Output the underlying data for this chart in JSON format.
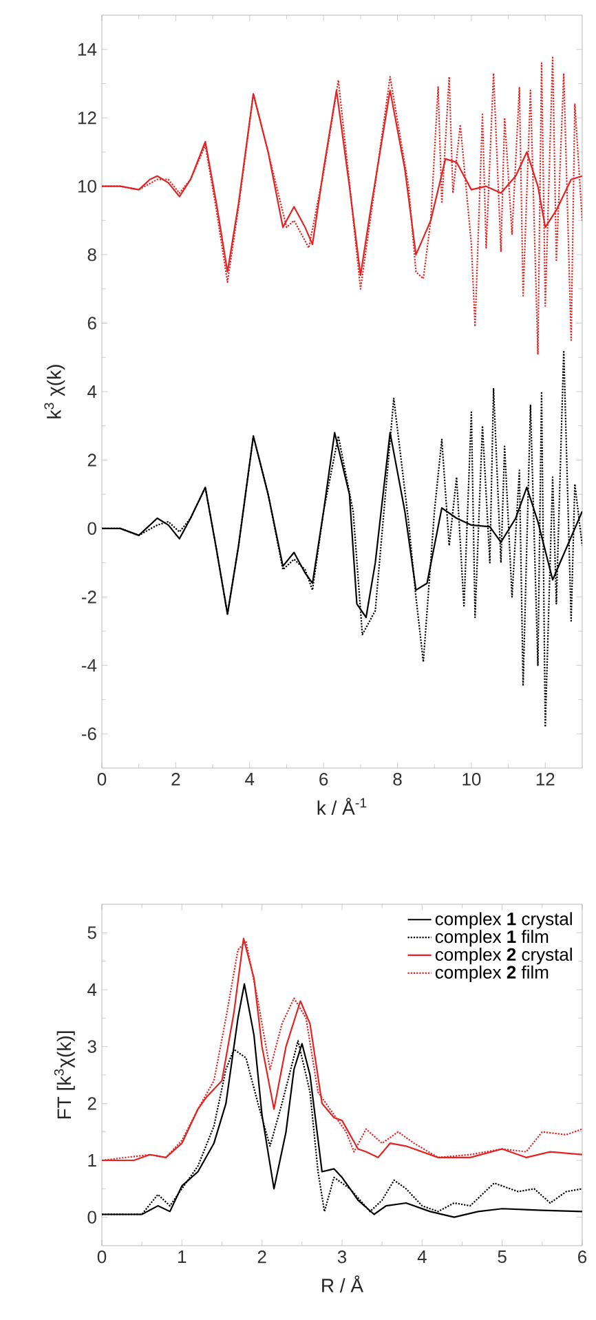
{
  "chart_data": [
    {
      "type": "line",
      "xlabel": "k / Å$^{-1}$",
      "ylabel": "k$^{3}$ χ(k)",
      "xlim": [
        0,
        13
      ],
      "ylim": [
        -7,
        15
      ],
      "xticks": [
        0,
        2,
        4,
        6,
        8,
        10,
        12
      ],
      "yticks": [
        -6,
        -4,
        -2,
        0,
        2,
        4,
        6,
        8,
        10,
        12,
        14
      ],
      "grid": false,
      "legend": false,
      "marker": "none",
      "series": [
        {
          "color": "#e52222",
          "line_style": "solid",
          "x": [
            0,
            0.5,
            1,
            1.3,
            1.5,
            1.8,
            2.1,
            2.4,
            2.8,
            3.1,
            3.4,
            3.7,
            4.1,
            4.5,
            4.9,
            5.2,
            5.5,
            5.7,
            6.0,
            6.35,
            6.7,
            7.0,
            7.3,
            7.8,
            8.2,
            8.5,
            8.9,
            9.3,
            9.6,
            10.0,
            10.4,
            10.8,
            11.2,
            11.5,
            11.8,
            12.0,
            12.3,
            12.7,
            13
          ],
          "values": [
            10,
            10,
            9.9,
            10.2,
            10.3,
            10.1,
            9.7,
            10.2,
            11.3,
            9.5,
            7.5,
            9.5,
            12.7,
            11.0,
            8.8,
            9.4,
            8.8,
            8.3,
            10.5,
            12.8,
            10.0,
            7.4,
            9.5,
            12.8,
            10.5,
            8.0,
            9.0,
            10.8,
            10.7,
            9.9,
            10.0,
            9.8,
            10.3,
            11.0,
            10.0,
            8.8,
            9.3,
            10.2,
            10.3
          ]
        },
        {
          "color": "#e52222",
          "line_style": "dotted",
          "x": [
            0,
            0.5,
            1,
            1.5,
            1.8,
            2.1,
            2.4,
            2.8,
            3.1,
            3.4,
            3.7,
            4.1,
            4.5,
            5.0,
            5.2,
            5.6,
            6.0,
            6.4,
            6.7,
            7.0,
            7.3,
            7.8,
            8.3,
            8.5,
            8.7,
            8.9,
            9.1,
            9.2,
            9.4,
            9.5,
            9.7,
            10.0,
            10.1,
            10.3,
            10.4,
            10.6,
            10.8,
            10.9,
            11.1,
            11.3,
            11.4,
            11.6,
            11.8,
            11.9,
            12.0,
            12.2,
            12.3,
            12.5,
            12.7,
            12.8,
            13
          ],
          "values": [
            10,
            10,
            9.9,
            10.2,
            10.2,
            9.8,
            10.2,
            11.2,
            9.3,
            7.2,
            9.4,
            12.7,
            11.0,
            8.8,
            9.0,
            8.2,
            10.4,
            13.1,
            10.1,
            7.0,
            9.3,
            13.2,
            10.0,
            7.5,
            7.3,
            9.0,
            12.9,
            9.5,
            13.2,
            9.8,
            11.8,
            8.3,
            5.9,
            12.1,
            8.2,
            13.3,
            8.1,
            12.0,
            8.6,
            12.9,
            6.8,
            12.8,
            5.1,
            13.6,
            6.5,
            13.8,
            7.8,
            13.3,
            5.5,
            12.4,
            9.0
          ]
        },
        {
          "color": "#000000",
          "line_style": "solid",
          "x": [
            0,
            0.5,
            1,
            1.5,
            1.8,
            2.1,
            2.4,
            2.8,
            3.1,
            3.4,
            3.7,
            4.1,
            4.5,
            4.9,
            5.2,
            5.5,
            5.7,
            6.0,
            6.3,
            6.7,
            6.9,
            7.15,
            7.4,
            7.8,
            8.2,
            8.5,
            8.8,
            9.2,
            9.6,
            10.0,
            10.5,
            10.8,
            11.2,
            11.5,
            11.8,
            12.2,
            12.6,
            13
          ],
          "values": [
            0,
            0,
            -0.2,
            0.3,
            0.1,
            -0.3,
            0.3,
            1.2,
            -0.6,
            -2.5,
            -0.5,
            2.7,
            1.0,
            -1.1,
            -0.7,
            -1.3,
            -1.6,
            0.5,
            2.8,
            1.0,
            -2.2,
            -2.6,
            -1.0,
            2.8,
            0.5,
            -1.8,
            -1.6,
            0.6,
            0.3,
            0.1,
            0.05,
            -0.4,
            0.3,
            1.2,
            0.2,
            -1.5,
            -0.5,
            0.5
          ]
        },
        {
          "color": "#000000",
          "line_style": "dotted",
          "x": [
            0,
            0.5,
            1,
            1.5,
            1.8,
            2.1,
            2.4,
            2.8,
            3.1,
            3.4,
            3.7,
            4.1,
            4.5,
            4.9,
            5.2,
            5.5,
            5.7,
            6.0,
            6.4,
            6.8,
            7.05,
            7.4,
            7.9,
            8.3,
            8.5,
            8.7,
            9.0,
            9.2,
            9.4,
            9.6,
            9.8,
            10.0,
            10.1,
            10.3,
            10.5,
            10.6,
            10.8,
            10.9,
            11.1,
            11.3,
            11.4,
            11.6,
            11.8,
            11.9,
            12.0,
            12.2,
            12.3,
            12.5,
            12.7,
            12.8,
            13
          ],
          "values": [
            0,
            0,
            -0.2,
            0.1,
            0.2,
            -0.1,
            0.3,
            1.2,
            -0.6,
            -2.5,
            -0.5,
            2.7,
            1.0,
            -1.2,
            -0.9,
            -1.2,
            -1.8,
            0.5,
            2.7,
            0.5,
            -3.1,
            -2.4,
            3.8,
            0.2,
            -2.0,
            -3.9,
            0.5,
            2.6,
            -0.5,
            1.5,
            -2.3,
            3.4,
            -2.6,
            3.0,
            -1.0,
            4.1,
            -1.0,
            2.4,
            -2.0,
            1.7,
            -4.6,
            3.6,
            -4.0,
            4.0,
            -5.8,
            1.5,
            -2.2,
            5.2,
            -2.7,
            1.3,
            -0.5
          ]
        }
      ]
    },
    {
      "type": "line",
      "xlabel": "R / Å",
      "ylabel": "FT [k$^{3}$χ(k)]",
      "xlim": [
        0,
        6
      ],
      "ylim": [
        -0.5,
        5.5
      ],
      "xticks": [
        0,
        1,
        2,
        3,
        4,
        5,
        6
      ],
      "yticks": [
        0,
        1,
        2,
        3,
        4,
        5
      ],
      "grid": false,
      "legend": "top right",
      "marker": "none",
      "series": [
        {
          "name": "complex **1** crystal",
          "color": "#000000",
          "line_style": "solid",
          "x": [
            0,
            0.5,
            0.7,
            0.85,
            1.0,
            1.2,
            1.4,
            1.55,
            1.7,
            1.78,
            1.9,
            2.0,
            2.15,
            2.3,
            2.4,
            2.5,
            2.6,
            2.75,
            2.9,
            3.0,
            3.2,
            3.4,
            3.55,
            3.8,
            4.1,
            4.4,
            4.7,
            5.0,
            5.5,
            6
          ],
          "values": [
            0.05,
            0.05,
            0.2,
            0.1,
            0.55,
            0.8,
            1.3,
            2.0,
            3.5,
            4.1,
            3.2,
            1.8,
            0.5,
            1.5,
            2.6,
            3.05,
            2.5,
            0.8,
            0.85,
            0.7,
            0.3,
            0.05,
            0.2,
            0.25,
            0.1,
            0.0,
            0.1,
            0.15,
            0.12,
            0.1
          ]
        },
        {
          "name": "complex **1** film",
          "color": "#000000",
          "line_style": "dotted",
          "x": [
            0,
            0.5,
            0.7,
            0.85,
            1.0,
            1.2,
            1.4,
            1.55,
            1.65,
            1.8,
            1.95,
            2.1,
            2.25,
            2.45,
            2.6,
            2.7,
            2.78,
            2.9,
            3.1,
            3.35,
            3.5,
            3.65,
            3.8,
            4.0,
            4.2,
            4.4,
            4.6,
            4.9,
            5.2,
            5.4,
            5.6,
            5.8,
            6
          ],
          "values": [
            0.05,
            0.05,
            0.4,
            0.2,
            0.5,
            0.9,
            1.6,
            2.6,
            2.95,
            2.8,
            2.0,
            1.25,
            2.0,
            3.1,
            2.2,
            0.8,
            0.1,
            0.7,
            0.5,
            0.1,
            0.3,
            0.65,
            0.5,
            0.2,
            0.1,
            0.25,
            0.2,
            0.6,
            0.45,
            0.5,
            0.25,
            0.45,
            0.5
          ]
        },
        {
          "name": "complex **2** crystal",
          "color": "#e52222",
          "line_style": "solid",
          "x": [
            0,
            0.4,
            0.6,
            0.8,
            1.0,
            1.2,
            1.3,
            1.5,
            1.65,
            1.77,
            1.9,
            2.0,
            2.15,
            2.3,
            2.48,
            2.6,
            2.75,
            2.9,
            3.0,
            3.2,
            3.3,
            3.45,
            3.6,
            3.8,
            4.2,
            4.6,
            5.0,
            5.3,
            5.6,
            6
          ],
          "values": [
            1.0,
            1.0,
            1.1,
            1.05,
            1.3,
            1.9,
            2.1,
            2.4,
            3.6,
            4.9,
            4.2,
            3.0,
            1.9,
            3.0,
            3.8,
            3.4,
            2.0,
            1.75,
            1.7,
            1.2,
            1.15,
            1.05,
            1.3,
            1.25,
            1.05,
            1.05,
            1.2,
            1.05,
            1.15,
            1.1
          ]
        },
        {
          "name": "complex **2** film",
          "color": "#e52222",
          "line_style": "dotted",
          "x": [
            0,
            0.6,
            0.8,
            1.0,
            1.2,
            1.4,
            1.55,
            1.7,
            1.8,
            1.95,
            2.1,
            2.25,
            2.4,
            2.55,
            2.7,
            2.9,
            3.05,
            3.15,
            3.3,
            3.5,
            3.7,
            3.9,
            4.2,
            4.6,
            5.0,
            5.3,
            5.5,
            5.8,
            6
          ],
          "values": [
            1.0,
            1.1,
            1.05,
            1.35,
            1.9,
            2.4,
            3.5,
            4.7,
            4.85,
            3.8,
            2.6,
            3.4,
            3.85,
            3.5,
            2.2,
            1.8,
            1.5,
            1.15,
            1.55,
            1.3,
            1.5,
            1.3,
            1.05,
            1.1,
            1.2,
            1.15,
            1.5,
            1.45,
            1.55
          ]
        }
      ]
    }
  ]
}
